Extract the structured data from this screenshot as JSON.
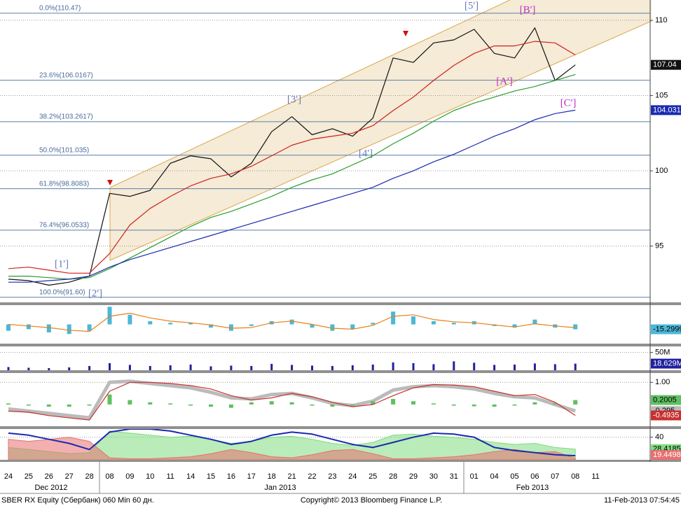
{
  "chart_data": [
    {
      "type": "line",
      "categories": [
        "24",
        "25",
        "26",
        "27",
        "28",
        "08",
        "09",
        "10",
        "11",
        "14",
        "15",
        "16",
        "17",
        "18",
        "21",
        "22",
        "23",
        "24",
        "25",
        "28",
        "29",
        "30",
        "31",
        "01",
        "04",
        "05",
        "06",
        "07",
        "08",
        "11"
      ],
      "month_labels": [
        "Dec 2012",
        "Jan 2013",
        "Feb 2013"
      ],
      "ylim": [
        91.26,
        111.35
      ],
      "yticks": [
        95,
        100,
        105,
        110
      ],
      "grid": true,
      "fib_levels": [
        {
          "value": 110.47,
          "label": "0.0%(110.47)"
        },
        {
          "value": 106.0167,
          "label": "23.6%(106.0167)"
        },
        {
          "value": 103.2617,
          "label": "38.2%(103.2617)"
        },
        {
          "value": 101.035,
          "label": "50.0%(101.035)"
        },
        {
          "value": 98.8083,
          "label": "61.8%(98.8083)"
        },
        {
          "value": 96.0533,
          "label": "76.4%(96.0533)"
        },
        {
          "value": 91.6,
          "label": "100.0%(91.60)"
        }
      ],
      "wave_labels": [
        {
          "text": "[1']",
          "color": "#6a7ab8"
        },
        {
          "text": "[2']",
          "color": "#6a7ab8"
        },
        {
          "text": "[3']",
          "color": "#6a7ab8"
        },
        {
          "text": "[4']",
          "color": "#6a7ab8"
        },
        {
          "text": "[5']",
          "color": "#6a7ab8"
        },
        {
          "text": "[A']",
          "color": "#c030c0"
        },
        {
          "text": "[B']",
          "color": "#c030c0"
        },
        {
          "text": "[C']",
          "color": "#c030c0"
        }
      ],
      "series": [
        {
          "type": "line",
          "color": "#111111",
          "last_value_label": true,
          "values": [
            92.8,
            92.7,
            92.4,
            92.6,
            93.0,
            98.5,
            98.3,
            98.7,
            100.5,
            101.0,
            100.8,
            99.6,
            100.5,
            102.6,
            103.6,
            102.4,
            102.8,
            102.3,
            103.5,
            107.5,
            107.2,
            108.5,
            108.7,
            109.4,
            107.8,
            107.5,
            109.5,
            106.0,
            107.04,
            null
          ]
        },
        {
          "type": "line",
          "color": "#d02020",
          "values": [
            93.5,
            93.6,
            93.4,
            93.2,
            93.2,
            94.5,
            96.4,
            97.5,
            98.3,
            99.0,
            99.5,
            99.8,
            100.3,
            101.0,
            101.7,
            102.1,
            102.3,
            102.5,
            103.0,
            104.0,
            104.9,
            106.0,
            107.0,
            107.8,
            108.3,
            108.3,
            108.6,
            108.5,
            107.7,
            null
          ]
        },
        {
          "type": "line",
          "color": "#2a9d2a",
          "values": [
            93.0,
            93.0,
            92.9,
            92.8,
            92.9,
            93.5,
            94.2,
            94.9,
            95.6,
            96.3,
            96.9,
            97.3,
            97.8,
            98.3,
            98.9,
            99.4,
            99.8,
            100.4,
            101.0,
            101.8,
            102.5,
            103.3,
            104.0,
            104.5,
            104.9,
            105.3,
            105.6,
            106.0,
            106.4,
            null
          ]
        },
        {
          "type": "line",
          "color": "#1a2ab0",
          "last_value_label": true,
          "values": [
            92.6,
            92.6,
            92.7,
            92.8,
            93.0,
            93.6,
            94.1,
            94.5,
            94.9,
            95.3,
            95.7,
            96.1,
            96.5,
            96.9,
            97.3,
            97.7,
            98.1,
            98.5,
            98.9,
            99.5,
            100.0,
            100.6,
            101.1,
            101.7,
            102.3,
            102.8,
            103.4,
            103.8,
            104.0313,
            null
          ]
        }
      ]
    },
    {
      "type": "bar",
      "ylim": [
        -60,
        60
      ],
      "yticks": [],
      "series": [
        {
          "type": "bar",
          "color": "#4bb8d8",
          "last_value_label": true,
          "values": [
            -20,
            -15,
            -25,
            -30,
            -20,
            55,
            30,
            10,
            5,
            5,
            -10,
            -20,
            -5,
            10,
            15,
            -10,
            -20,
            -15,
            5,
            40,
            25,
            10,
            5,
            10,
            -5,
            -10,
            15,
            -10,
            -15.2999,
            null
          ]
        },
        {
          "type": "line",
          "color": "#e8801a",
          "values": [
            0,
            -5,
            -10,
            -18,
            -22,
            25,
            35,
            20,
            10,
            5,
            -2,
            -12,
            -10,
            5,
            10,
            0,
            -12,
            -15,
            -3,
            25,
            30,
            15,
            8,
            5,
            -2,
            -8,
            2,
            -5,
            -10,
            null
          ]
        }
      ]
    },
    {
      "type": "bar",
      "ylim": [
        0,
        67000000
      ],
      "yticks": [
        {
          "value": 50000000,
          "label": "50M"
        }
      ],
      "series": [
        {
          "type": "bar",
          "color": "#2020a0",
          "values": [
            9000000,
            7000000,
            6000000,
            8000000,
            12000000,
            20000000,
            15000000,
            12000000,
            14000000,
            16000000,
            11000000,
            13000000,
            12000000,
            18000000,
            15000000,
            13000000,
            12000000,
            14000000,
            16000000,
            22000000,
            20000000,
            17000000,
            25000000,
            21000000,
            15000000,
            16000000,
            19000000,
            17000000,
            18629000,
            null
          ],
          "value_labels": [
            null,
            null,
            null,
            null,
            null,
            null,
            null,
            null,
            null,
            null,
            null,
            null,
            null,
            null,
            null,
            null,
            null,
            null,
            null,
            null,
            null,
            null,
            null,
            null,
            null,
            null,
            null,
            null,
            "18.629M",
            null
          ]
        }
      ]
    },
    {
      "type": "bar",
      "ylim": [
        -0.98,
        1.42
      ],
      "yticks": [
        {
          "value": 1,
          "label": "1.00"
        }
      ],
      "series": [
        {
          "type": "line",
          "color": "#bbbbbb",
          "width": 5,
          "last_value_label": true,
          "values": [
            -0.2,
            -0.3,
            -0.4,
            -0.5,
            -0.6,
            1.0,
            1.05,
            0.95,
            0.85,
            0.75,
            0.55,
            0.3,
            0.25,
            0.45,
            0.5,
            0.3,
            0.05,
            -0.05,
            0.15,
            0.65,
            0.8,
            0.85,
            0.8,
            0.7,
            0.5,
            0.35,
            0.3,
            0.0,
            -0.295,
            null
          ]
        },
        {
          "type": "bar",
          "color": "#60c060",
          "last_value_label": true,
          "values": [
            0.05,
            -0.05,
            -0.1,
            -0.1,
            -0.05,
            0.45,
            0.2,
            0.1,
            0.05,
            -0.05,
            -0.1,
            -0.15,
            0.1,
            0.15,
            0.1,
            -0.05,
            -0.1,
            -0.05,
            0.15,
            0.25,
            0.15,
            0.05,
            -0.05,
            -0.08,
            -0.1,
            -0.05,
            0.1,
            0.05,
            0.2005,
            null
          ]
        },
        {
          "type": "line",
          "color": "#c83030",
          "last_value_label": true,
          "values": [
            -0.3,
            -0.35,
            -0.5,
            -0.6,
            -0.7,
            0.6,
            1.0,
            1.0,
            0.95,
            0.85,
            0.7,
            0.4,
            0.2,
            0.3,
            0.5,
            0.35,
            0.1,
            -0.1,
            0.0,
            0.4,
            0.75,
            0.9,
            0.88,
            0.8,
            0.6,
            0.4,
            0.45,
            0.1,
            -0.4935,
            null
          ]
        }
      ]
    },
    {
      "type": "line",
      "ylim": [
        18,
        48
      ],
      "yticks": [
        40
      ],
      "series": [
        {
          "type": "area",
          "color": "#7fdc7f",
          "last_value_label": true,
          "values": [
            30,
            28,
            26,
            24,
            25,
            46,
            44,
            42,
            40,
            41,
            38,
            34,
            36,
            40,
            41,
            38,
            34,
            32,
            35,
            42,
            43,
            41,
            40,
            38,
            35,
            33,
            34,
            30,
            28.4185,
            null
          ]
        },
        {
          "type": "area",
          "color": "#e87070",
          "last_value_label": true,
          "values": [
            38,
            36,
            38,
            40,
            36,
            20,
            19,
            19,
            20,
            21,
            24,
            28,
            25,
            21,
            20,
            23,
            27,
            28,
            24,
            19,
            19,
            20,
            21,
            23,
            26,
            28,
            25,
            26,
            19.4498,
            null
          ]
        },
        {
          "type": "line",
          "color": "#1a2ab0",
          "width": 2,
          "values": [
            44,
            42,
            38,
            34,
            28,
            45,
            48,
            48,
            46,
            42,
            38,
            33,
            36,
            42,
            45,
            43,
            38,
            33,
            30,
            35,
            40,
            44,
            43,
            40,
            30,
            27,
            25,
            23,
            22,
            null
          ]
        }
      ]
    }
  ],
  "footer": {
    "left": "SBER RX Equity (Сбербанк) 060 Min 60 дн.",
    "center": "Copyright© 2013 Bloomberg Finance L.P.",
    "right": "11-Feb-2013 07:54:45"
  }
}
